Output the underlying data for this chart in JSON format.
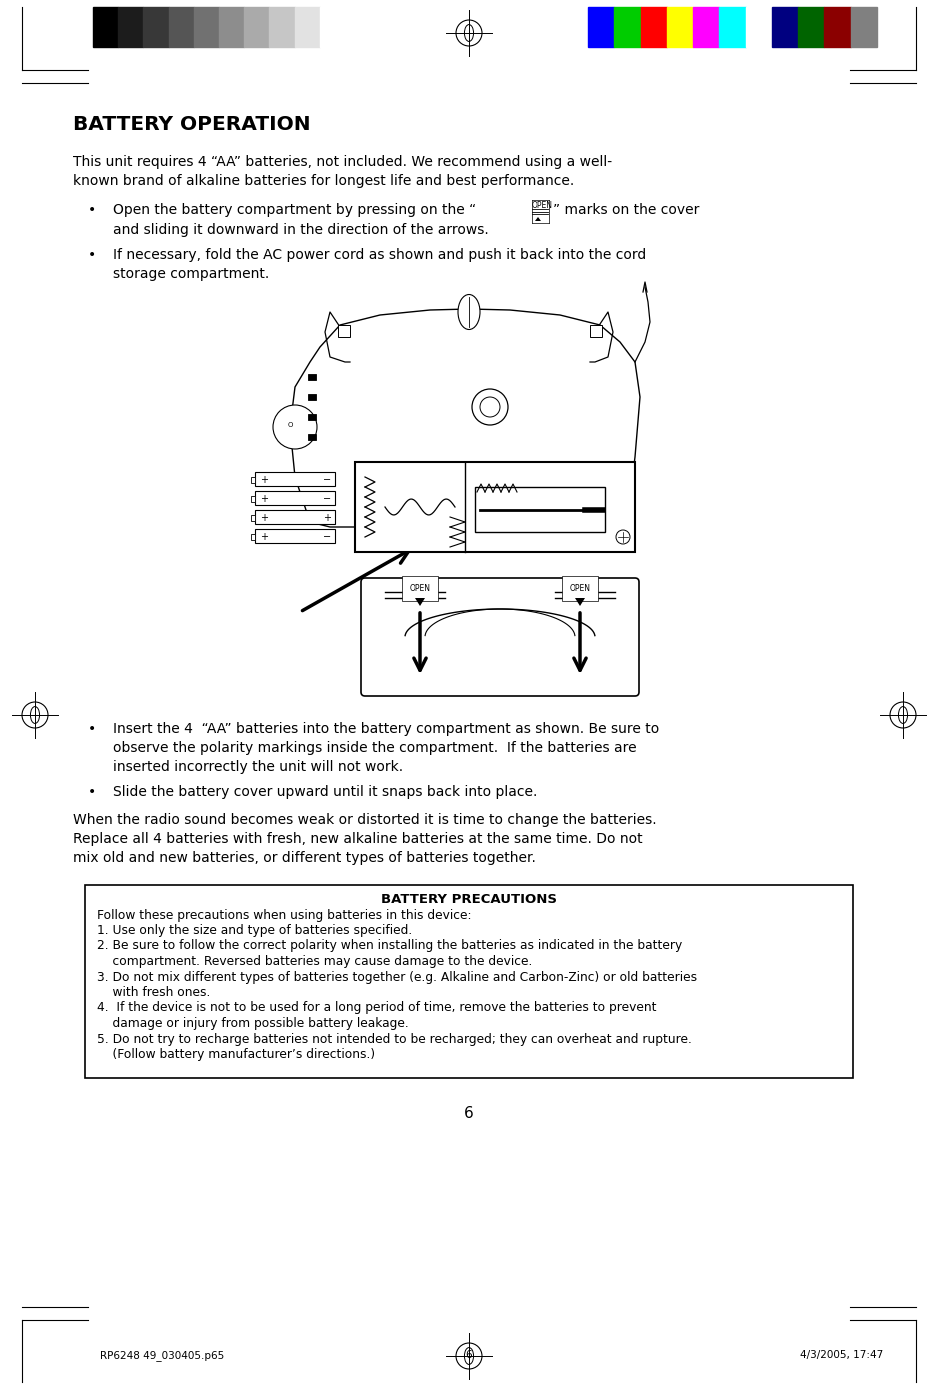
{
  "page_width": 9.38,
  "page_height": 13.89,
  "bg_color": "#ffffff",
  "title": "BATTERY OPERATION",
  "grayscale_colors": [
    "#000000",
    "#1c1c1c",
    "#383838",
    "#555555",
    "#717171",
    "#8d8d8d",
    "#aaaaaa",
    "#c6c6c6",
    "#e2e2e2",
    "#ffffff"
  ],
  "color_bars": [
    "#0000ff",
    "#00cc00",
    "#ff0000",
    "#ffff00",
    "#ff00ff",
    "#00ffff",
    "#ffffff",
    "#000080",
    "#006400",
    "#8b0000",
    "#808080"
  ],
  "footer_text_left": "RP6248 49_030405.p65",
  "footer_text_center": "6",
  "footer_text_right": "4/3/2005, 17:47",
  "page_number": "6"
}
